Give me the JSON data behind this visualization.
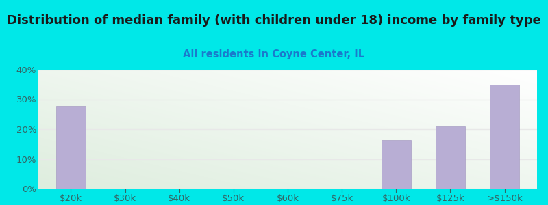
{
  "title": "Distribution of median family (with children under 18) income by family type",
  "subtitle": "All residents in Coyne Center, IL",
  "categories": [
    "$20k",
    "$30k",
    "$40k",
    "$50k",
    "$60k",
    "$75k",
    "$100k",
    "$125k",
    ">$150k"
  ],
  "values": [
    27.9,
    0.0,
    0.0,
    0.0,
    0.0,
    0.0,
    16.3,
    20.9,
    34.9
  ],
  "bar_color": "#b8aed4",
  "bar_edge_color": "#a89ec4",
  "background_outer": "#00e8e8",
  "background_inner_topleft": "#f0f8f0",
  "background_inner_topright": "#ffffff",
  "background_inner_bottom": "#ddeedd",
  "title_color": "#1a1a1a",
  "subtitle_color": "#1a7acc",
  "axis_label_color": "#336666",
  "grid_color": "#e8e8e8",
  "ylim": [
    0,
    40
  ],
  "yticks": [
    0,
    10,
    20,
    30,
    40
  ],
  "ytick_labels": [
    "0%",
    "10%",
    "20%",
    "30%",
    "40%"
  ],
  "title_fontsize": 13,
  "subtitle_fontsize": 10.5,
  "tick_fontsize": 9.5
}
